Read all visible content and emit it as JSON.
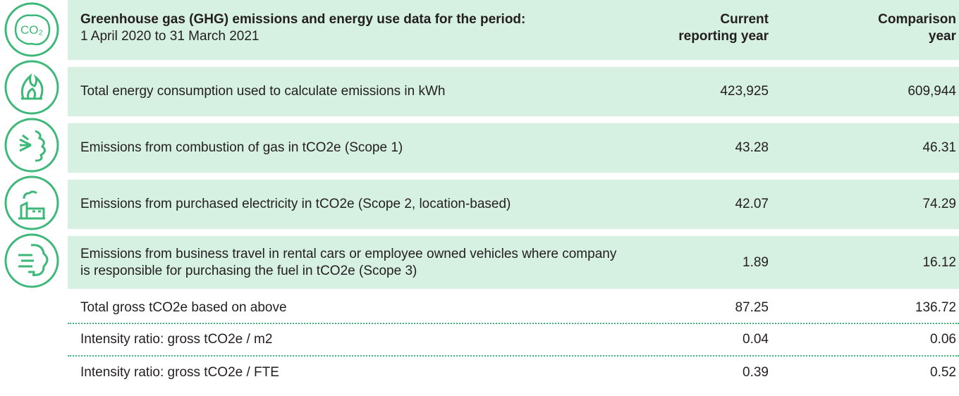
{
  "icons": {
    "co2": "CO₂"
  },
  "header": {
    "title": "Greenhouse gas (GHG) emissions and energy use data for the period:",
    "subtitle": "1 April 2020 to 31 March 2021",
    "current": "Current reporting year",
    "comparison": "Comparison year"
  },
  "table": {
    "rows": [
      [
        "Total energy consumption used to calculate emissions in kWh",
        "423,925",
        "609,944"
      ],
      [
        "Emissions from combustion of gas in tCO2e (Scope 1)",
        "43.28",
        "46.31"
      ],
      [
        "Emissions from purchased electricity in tCO2e (Scope 2, location-based)",
        "42.07",
        "74.29"
      ],
      [
        "Emissions from business travel in rental cars or employee owned vehicles where company is responsible for purchasing the fuel in tCO2e (Scope 3)",
        "1.89",
        "16.12"
      ],
      [
        "Total gross tCO2e based on above",
        "87.25",
        "136.72"
      ],
      [
        "Intensity ratio: gross tCO2e / m2",
        "0.04",
        "0.06"
      ],
      [
        "Intensity ratio: gross tCO2e / FTE",
        "0.39",
        "0.52"
      ]
    ]
  }
}
